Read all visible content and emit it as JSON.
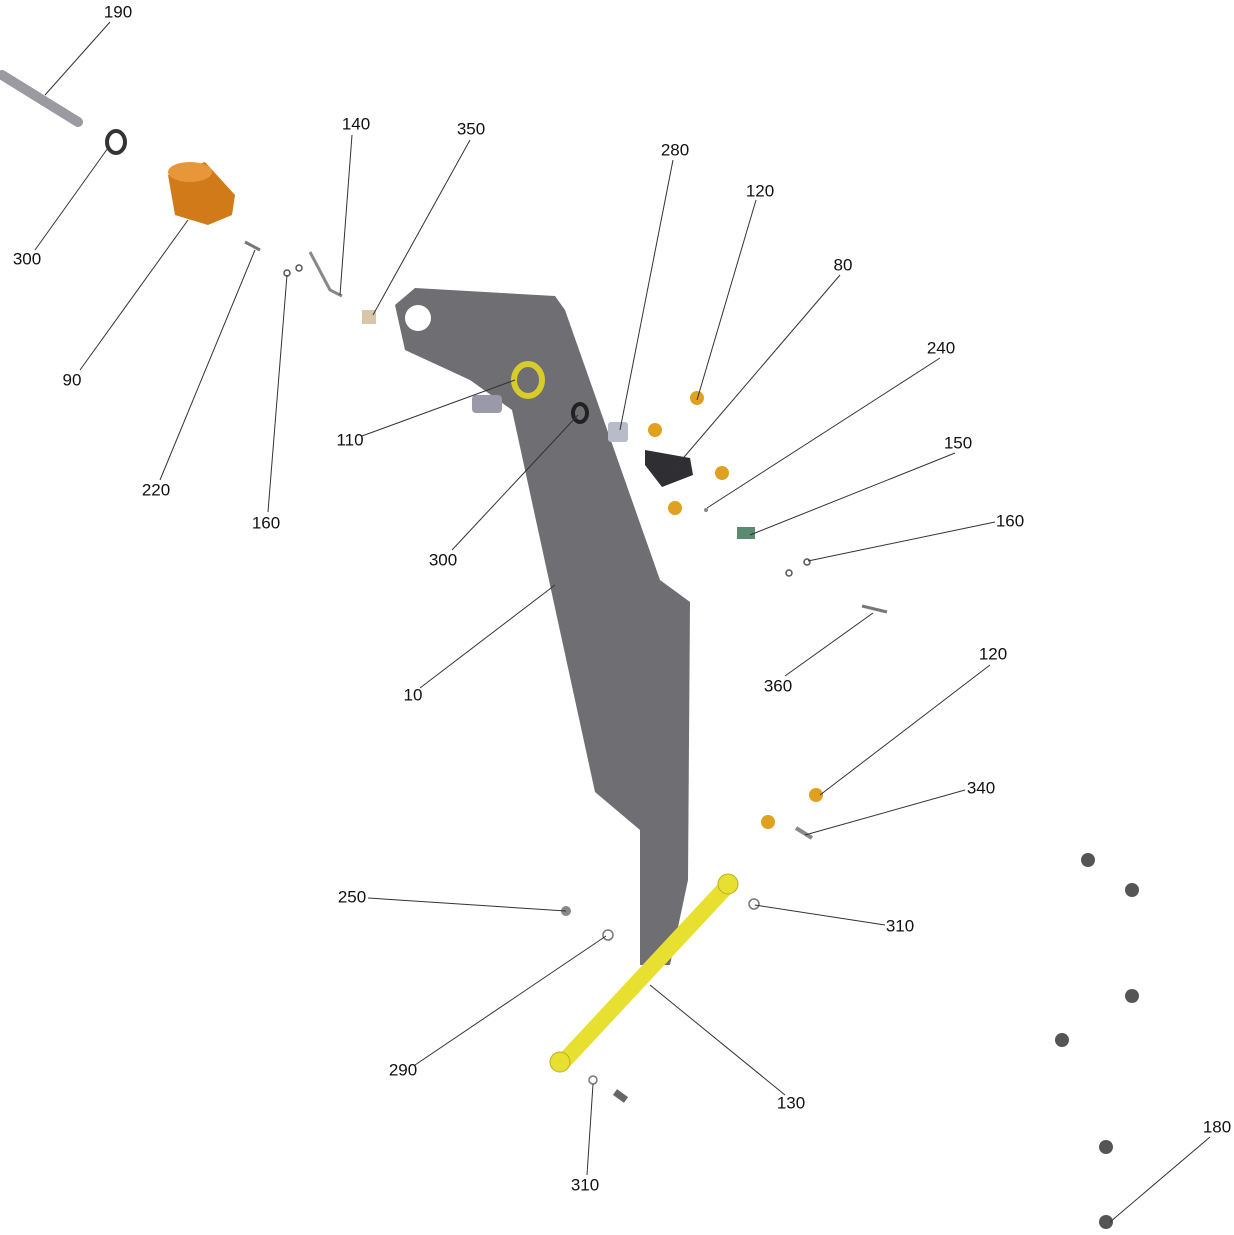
{
  "callouts": [
    {
      "label": "190"
    },
    {
      "label": "300"
    },
    {
      "label": "90"
    },
    {
      "label": "220"
    },
    {
      "label": "160"
    },
    {
      "label": "140"
    },
    {
      "label": "350"
    },
    {
      "label": "280"
    },
    {
      "label": "120"
    },
    {
      "label": "80"
    },
    {
      "label": "240"
    },
    {
      "label": "150"
    },
    {
      "label": "160"
    },
    {
      "label": "110"
    },
    {
      "label": "300"
    },
    {
      "label": "10"
    },
    {
      "label": "360"
    },
    {
      "label": "120"
    },
    {
      "label": "340"
    },
    {
      "label": "250"
    },
    {
      "label": "310"
    },
    {
      "label": "290"
    },
    {
      "label": "130"
    },
    {
      "label": "310"
    },
    {
      "label": "180"
    }
  ]
}
